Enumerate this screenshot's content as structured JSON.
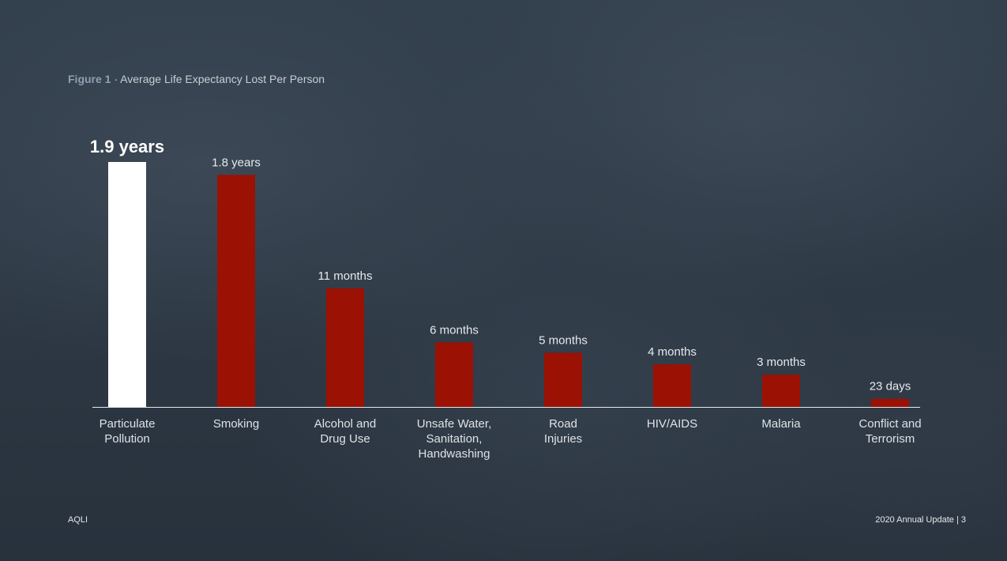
{
  "figure": {
    "label": "Figure 1",
    "separator": "·",
    "title": "Average Life Expectancy Lost Per Person"
  },
  "footer": {
    "left": "AQLI",
    "right": "2020 Annual Update | 3"
  },
  "colors": {
    "highlight_bar": "#ffffff",
    "bar": "#9b1104",
    "baseline": "#e6e9ec",
    "background": "#2f3a46"
  },
  "chart_data": {
    "type": "bar",
    "title": "Average Life Expectancy Lost Per Person",
    "unit": "years",
    "categories": [
      [
        "Particulate",
        "Pollution"
      ],
      [
        "Smoking"
      ],
      [
        "Alcohol and",
        "Drug Use"
      ],
      [
        "Unsafe Water,",
        "Sanitation,",
        "Handwashing"
      ],
      [
        "Road",
        "Injuries"
      ],
      [
        "HIV/AIDS"
      ],
      [
        "Malaria"
      ],
      [
        "Conflict and",
        "Terrorism"
      ]
    ],
    "values": [
      1.9,
      1.8,
      0.92,
      0.5,
      0.42,
      0.33,
      0.25,
      0.063
    ],
    "data_labels": [
      "1.9 years",
      "1.8 years",
      "11 months",
      "6 months",
      "5 months",
      "4 months",
      "3 months",
      "23 days"
    ],
    "highlight_index": 0,
    "ylim": [
      0,
      1.9
    ],
    "grid": false,
    "axes_visible": false
  }
}
